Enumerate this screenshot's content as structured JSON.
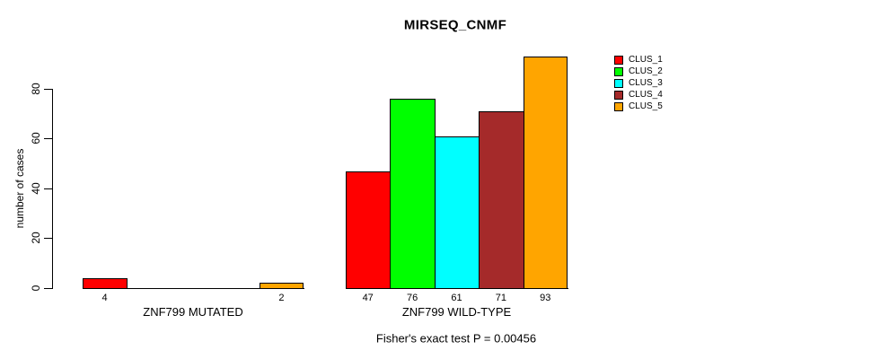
{
  "chart_data": {
    "type": "bar",
    "title": "MIRSEQ_CNMF",
    "subtitle": "Fisher's exact test P = 0.00456",
    "ylabel": "number of cases",
    "xlabel": "",
    "ylim": [
      0,
      93
    ],
    "yticks": [
      0,
      20,
      40,
      60,
      80
    ],
    "grid": false,
    "legend_position": "right",
    "clusters": [
      {
        "label": "CLUS_1",
        "color": "#ff0000"
      },
      {
        "label": "CLUS_2",
        "color": "#00ff00"
      },
      {
        "label": "CLUS_3",
        "color": "#00ffff"
      },
      {
        "label": "CLUS_4",
        "color": "#a52a2a"
      },
      {
        "label": "CLUS_5",
        "color": "#ffa500"
      }
    ],
    "groups": [
      {
        "label": "ZNF799 MUTATED",
        "values": [
          4,
          0,
          0,
          0,
          2
        ],
        "bar_labels": [
          "4",
          "",
          "",
          "",
          "2"
        ]
      },
      {
        "label": "ZNF799 WILD-TYPE",
        "values": [
          47,
          76,
          61,
          71,
          93
        ],
        "bar_labels": [
          "47",
          "76",
          "61",
          "71",
          "93"
        ]
      }
    ]
  }
}
